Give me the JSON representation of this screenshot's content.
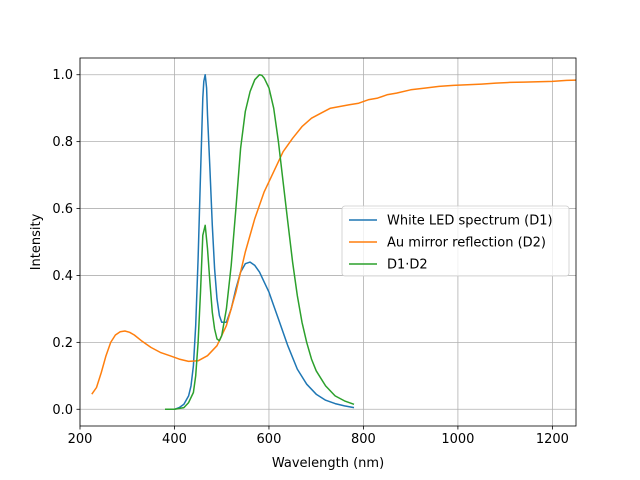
{
  "chart_data": {
    "type": "line",
    "title": "",
    "xlabel": "Wavelength (nm)",
    "ylabel": "Intensity",
    "xlim": [
      200,
      1250
    ],
    "ylim": [
      -0.05,
      1.05
    ],
    "xticks": [
      200,
      400,
      600,
      800,
      1000,
      1200
    ],
    "yticks": [
      0.0,
      0.2,
      0.4,
      0.6,
      0.8,
      1.0
    ],
    "xtick_labels": [
      "200",
      "400",
      "600",
      "800",
      "1000",
      "1200"
    ],
    "ytick_labels": [
      "0.0",
      "0.2",
      "0.4",
      "0.6",
      "0.8",
      "1.0"
    ],
    "grid": true,
    "legend_position": "center-right",
    "series": [
      {
        "name": "White LED spectrum (D1)",
        "color": "#1f77b4",
        "x": [
          380,
          400,
          410,
          420,
          430,
          435,
          440,
          445,
          450,
          455,
          460,
          462,
          465,
          468,
          470,
          475,
          480,
          485,
          490,
          495,
          500,
          510,
          520,
          530,
          540,
          550,
          560,
          570,
          580,
          590,
          600,
          610,
          620,
          640,
          660,
          680,
          700,
          720,
          740,
          760,
          780
        ],
        "y": [
          0.0,
          0.0,
          0.005,
          0.015,
          0.04,
          0.07,
          0.13,
          0.25,
          0.45,
          0.7,
          0.93,
          0.98,
          1.0,
          0.96,
          0.88,
          0.72,
          0.55,
          0.42,
          0.33,
          0.28,
          0.26,
          0.26,
          0.3,
          0.36,
          0.41,
          0.435,
          0.44,
          0.43,
          0.41,
          0.38,
          0.35,
          0.31,
          0.27,
          0.19,
          0.12,
          0.075,
          0.045,
          0.027,
          0.017,
          0.01,
          0.005
        ]
      },
      {
        "name": "Au mirror reflection (D2)",
        "color": "#ff7f0e",
        "x": [
          225,
          235,
          245,
          255,
          265,
          275,
          285,
          295,
          305,
          315,
          330,
          350,
          370,
          390,
          410,
          430,
          450,
          470,
          490,
          510,
          530,
          550,
          570,
          590,
          610,
          630,
          650,
          670,
          690,
          710,
          730,
          750,
          770,
          790,
          810,
          830,
          850,
          870,
          900,
          930,
          960,
          990,
          1020,
          1050,
          1080,
          1110,
          1140,
          1170,
          1200,
          1230,
          1250
        ],
        "y": [
          0.045,
          0.065,
          0.11,
          0.16,
          0.2,
          0.222,
          0.232,
          0.234,
          0.23,
          0.222,
          0.205,
          0.185,
          0.17,
          0.16,
          0.15,
          0.143,
          0.145,
          0.16,
          0.19,
          0.25,
          0.35,
          0.47,
          0.57,
          0.65,
          0.71,
          0.77,
          0.81,
          0.845,
          0.87,
          0.885,
          0.9,
          0.905,
          0.91,
          0.915,
          0.925,
          0.93,
          0.94,
          0.945,
          0.955,
          0.96,
          0.965,
          0.968,
          0.97,
          0.972,
          0.975,
          0.977,
          0.978,
          0.979,
          0.98,
          0.983,
          0.984
        ]
      },
      {
        "name": "D1·D2",
        "color": "#2ca02c",
        "x": [
          380,
          400,
          420,
          430,
          440,
          445,
          450,
          455,
          460,
          465,
          470,
          475,
          480,
          485,
          490,
          495,
          500,
          510,
          520,
          530,
          540,
          550,
          560,
          570,
          580,
          585,
          590,
          600,
          610,
          620,
          630,
          640,
          650,
          660,
          670,
          680,
          690,
          700,
          720,
          740,
          760,
          780
        ],
        "y": [
          0.0,
          0.0,
          0.005,
          0.02,
          0.05,
          0.1,
          0.2,
          0.35,
          0.52,
          0.55,
          0.48,
          0.38,
          0.29,
          0.24,
          0.21,
          0.205,
          0.22,
          0.3,
          0.43,
          0.6,
          0.78,
          0.89,
          0.95,
          0.985,
          1.0,
          0.998,
          0.99,
          0.96,
          0.9,
          0.8,
          0.68,
          0.56,
          0.44,
          0.34,
          0.26,
          0.2,
          0.15,
          0.115,
          0.07,
          0.04,
          0.025,
          0.015
        ]
      }
    ]
  }
}
